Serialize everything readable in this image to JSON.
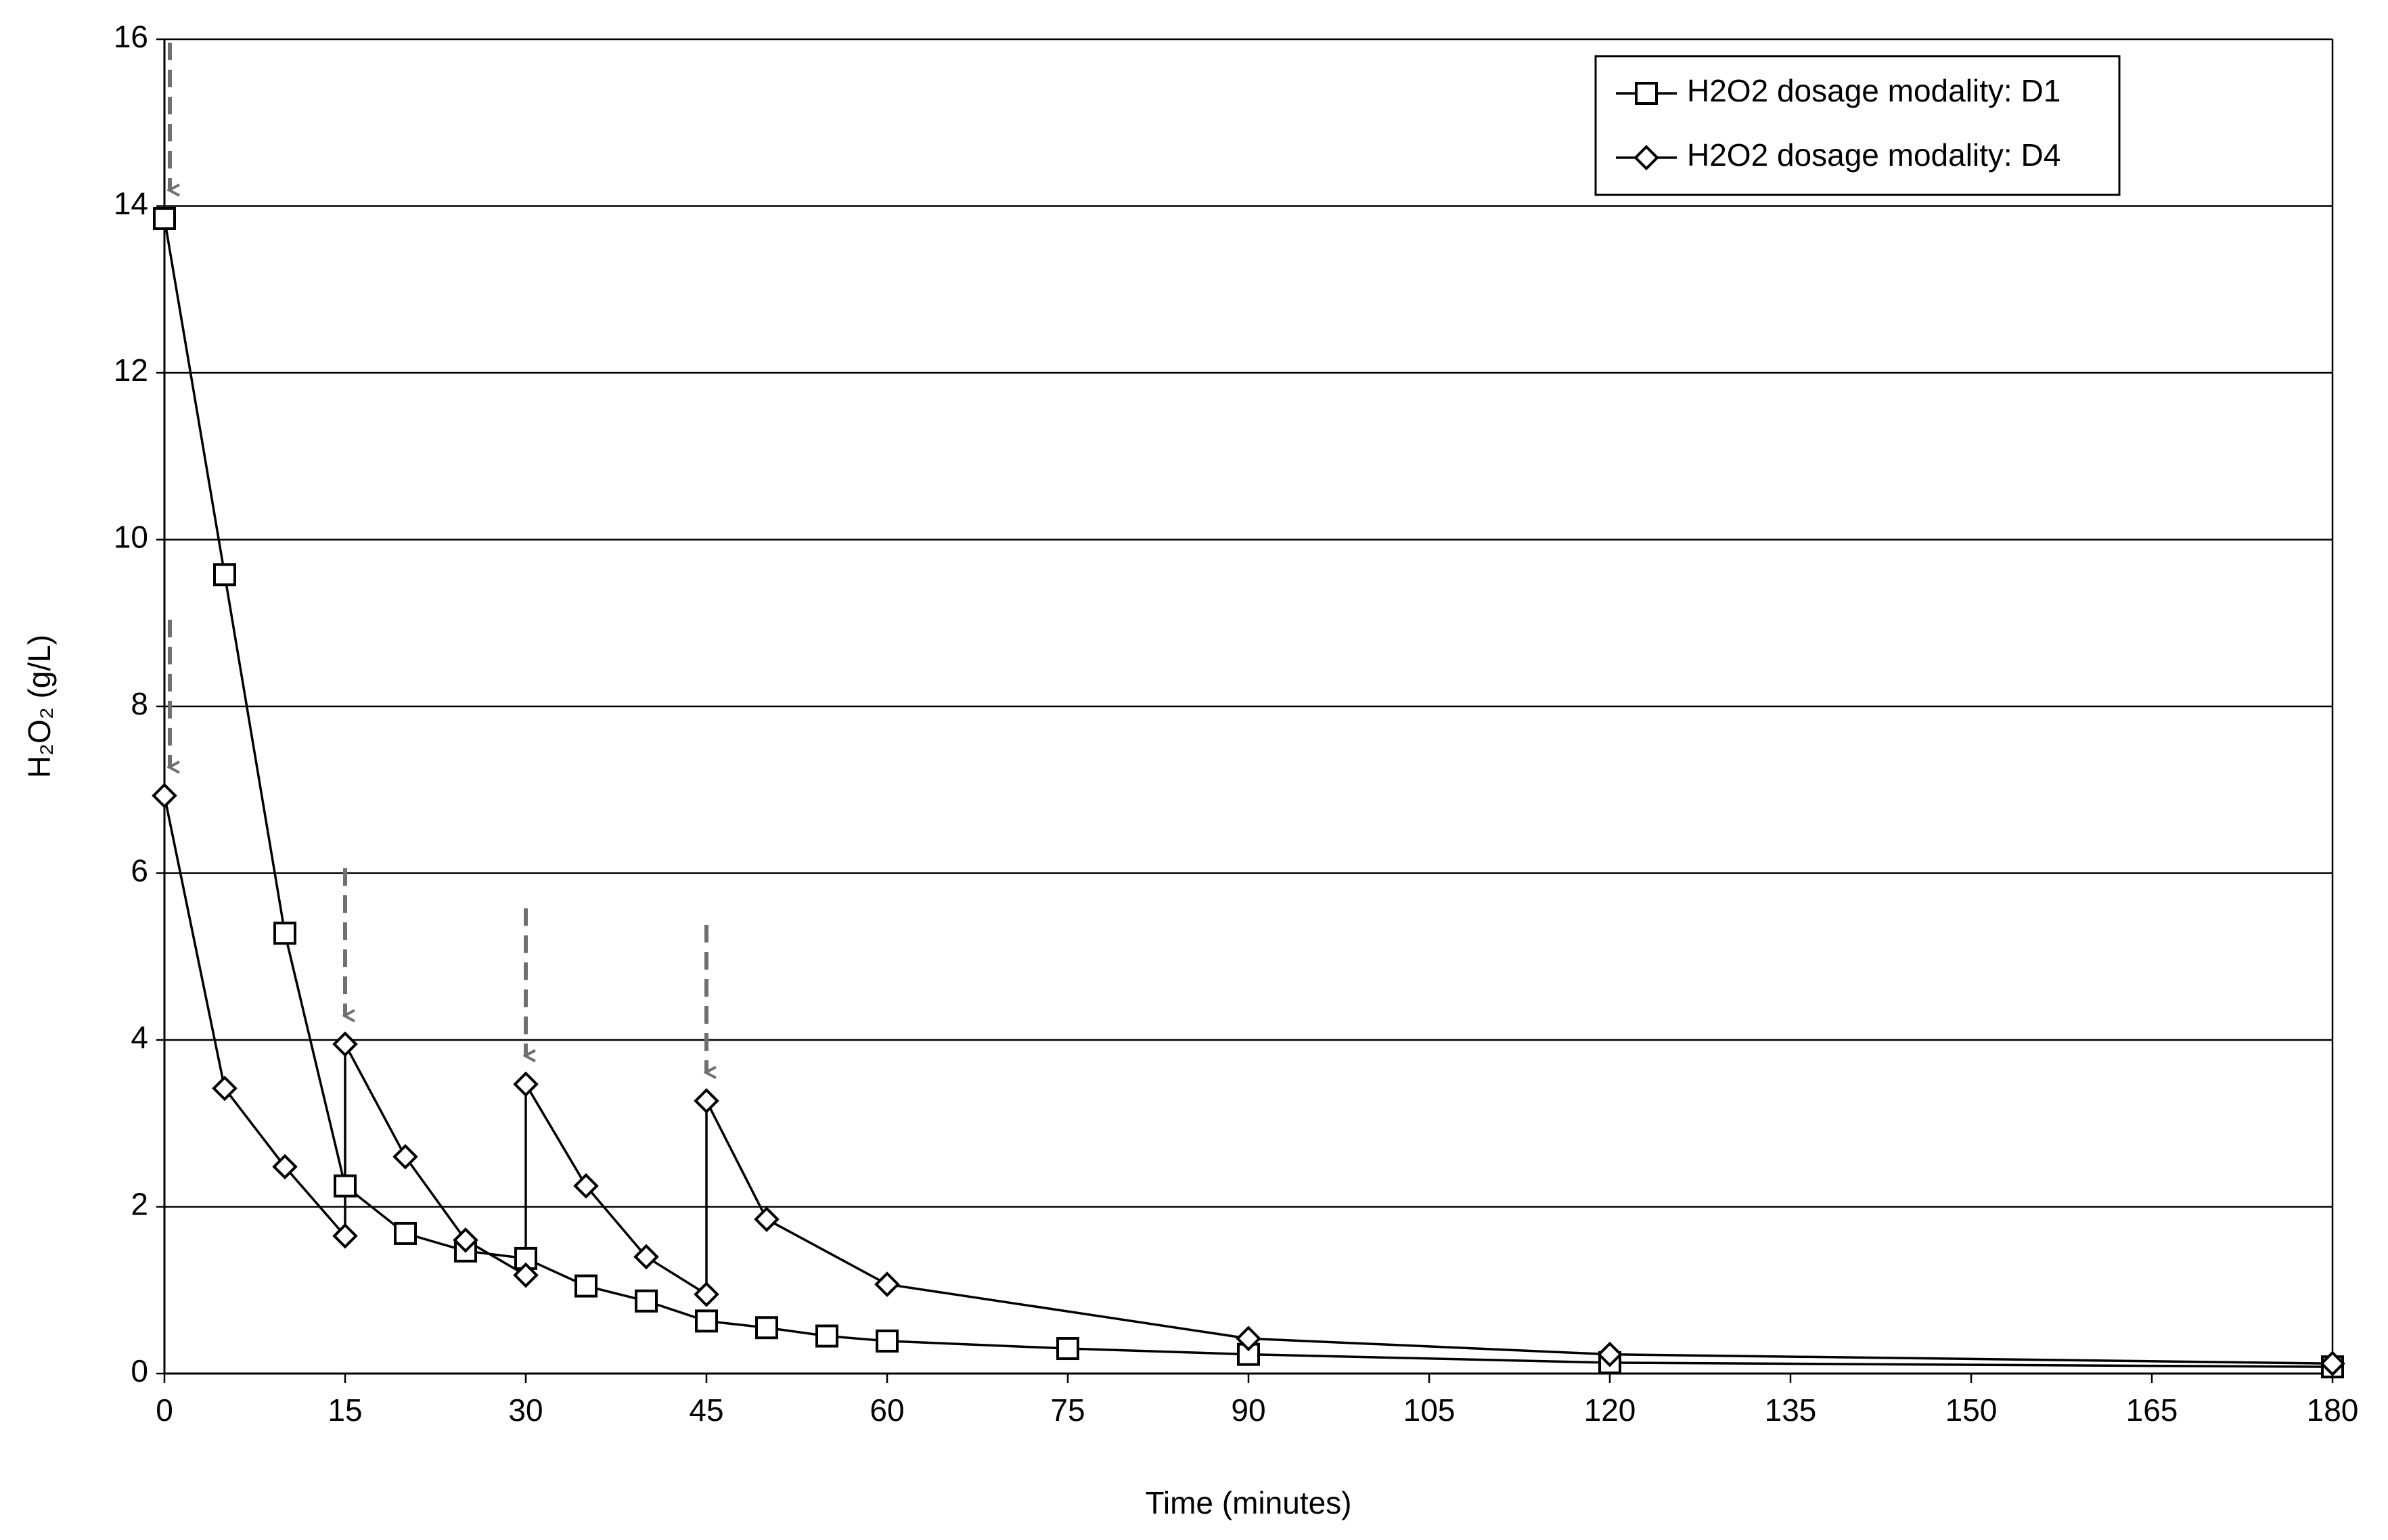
{
  "chart_data": {
    "type": "line",
    "x_label": "Time (minutes)",
    "y_label": "H₂O₂ (g/L)",
    "xlim": [
      0,
      180
    ],
    "xticks": [
      0,
      15,
      30,
      45,
      60,
      75,
      90,
      105,
      120,
      135,
      150,
      165,
      180
    ],
    "ylim": [
      0,
      16
    ],
    "yticks": [
      0,
      2,
      4,
      6,
      8,
      10,
      12,
      14,
      16
    ],
    "grid": true,
    "legend": "upper right",
    "series": [
      {
        "name": "H2O2 dosage modality: D1",
        "color": "#000000",
        "marker": "square",
        "x": [
          0,
          5,
          10,
          15,
          20,
          25,
          30,
          35,
          40,
          45,
          50,
          55,
          60,
          75,
          90,
          120,
          180
        ],
        "values": [
          13.85,
          9.58,
          5.28,
          2.25,
          1.68,
          1.47,
          1.38,
          1.05,
          0.87,
          0.63,
          0.55,
          0.45,
          0.39,
          0.3,
          0.23,
          0.13,
          0.08
        ]
      },
      {
        "name": "H2O2 dosage modality: D4",
        "color": "#000000",
        "marker": "diamond",
        "x": [
          0,
          5,
          10,
          15,
          15,
          20,
          25,
          30,
          30,
          35,
          40,
          45,
          45,
          50,
          60,
          90,
          120,
          180
        ],
        "values": [
          6.93,
          3.42,
          2.48,
          1.65,
          3.95,
          2.6,
          1.6,
          1.18,
          3.47,
          2.25,
          1.4,
          0.95,
          3.27,
          1.85,
          1.07,
          0.42,
          0.23,
          0.12
        ]
      }
    ]
  }
}
